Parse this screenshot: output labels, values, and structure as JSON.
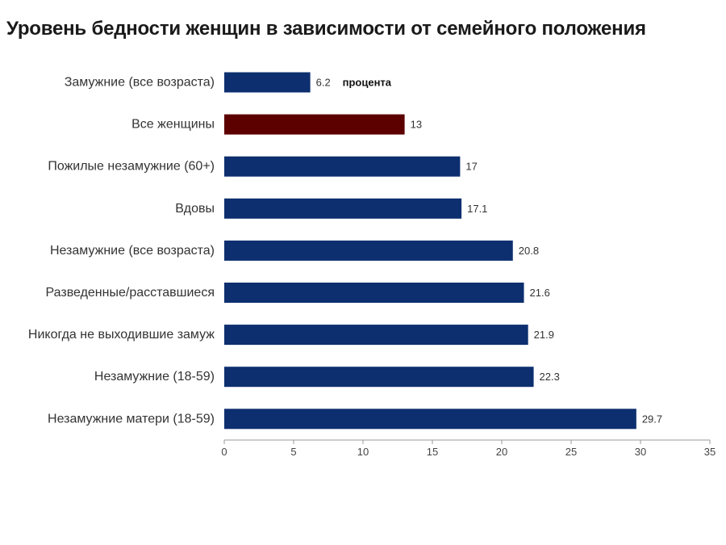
{
  "chart_data": {
    "type": "bar",
    "orientation": "horizontal",
    "title": "Уровень бедности женщин в зависимости от семейного положения",
    "unit_label": "процента",
    "categories": [
      "Замужние (все возраста)",
      "Все женщины",
      "Пожилые незамужние (60+)",
      "Вдовы",
      "Незамужние (все возраста)",
      "Разведенные/расставшиеся",
      "Никогда не выходившие замуж",
      "Незамужние (18-59)",
      "Незамужние матери (18-59)"
    ],
    "values": [
      6.2,
      13,
      17,
      17.1,
      20.8,
      21.6,
      21.9,
      22.3,
      29.7
    ],
    "value_labels": [
      "6.2",
      "13",
      "17",
      "17.1",
      "20.8",
      "21.6",
      "21.9",
      "22.3",
      "29.7"
    ],
    "colors": [
      "#0d2f6f",
      "#5c0000",
      "#0d2f6f",
      "#0d2f6f",
      "#0d2f6f",
      "#0d2f6f",
      "#0d2f6f",
      "#0d2f6f",
      "#0d2f6f"
    ],
    "xlim": [
      0,
      35
    ],
    "xticks": [
      0,
      5,
      10,
      15,
      20,
      25,
      30,
      35
    ],
    "xlabel": "",
    "ylabel": "",
    "grid": false,
    "legend": "none"
  }
}
